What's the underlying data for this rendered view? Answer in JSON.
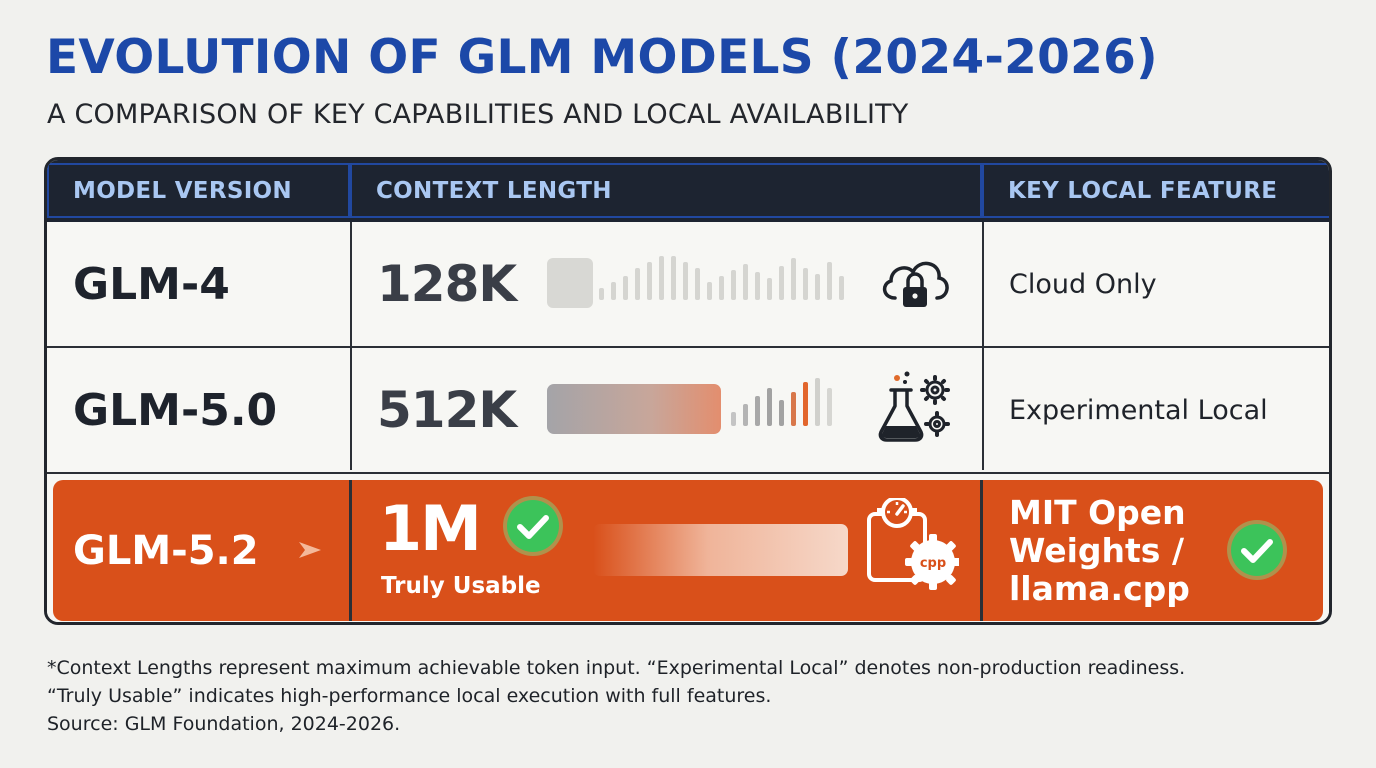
{
  "title": "EVOLUTION OF GLM MODELS (2024-2026)",
  "subtitle": "A COMPARISON OF KEY CAPABILITIES AND LOCAL AVAILABILITY",
  "table": {
    "headers": [
      "MODEL VERSION",
      "CONTEXT LENGTH",
      "KEY LOCAL FEATURE"
    ],
    "rows": [
      {
        "model": "GLM-4",
        "context": "128K",
        "feature": "Cloud Only",
        "icon": "cloud-lock-icon",
        "bar_level": "low"
      },
      {
        "model": "GLM-5.0",
        "context": "512K",
        "feature": "Experimental Local",
        "icon": "flask-gears-icon",
        "bar_level": "medium"
      },
      {
        "model": "GLM-5.2",
        "context": "1M",
        "context_note": "Truly Usable",
        "feature_line1": "MIT Open",
        "feature_line2": "Weights /",
        "feature_line3": "llama.cpp",
        "icon": "gauge-cpp-icon",
        "bar_level": "full",
        "highlighted": true
      }
    ]
  },
  "icon_labels": {
    "cpp": "cpp"
  },
  "footnote": {
    "line1": "*Context Lengths represent maximum achievable token input. “Experimental Local” denotes non-production readiness.",
    "line2": "“Truly Usable” indicates high-performance local execution with full features.",
    "line3": "Source: GLM Foundation, 2024-2026."
  },
  "colors": {
    "title": "#1c48a8",
    "header_bg": "#1d2431",
    "header_text": "#a9c7f2",
    "highlight": "#d9501a",
    "check_green": "#3cc35a"
  }
}
